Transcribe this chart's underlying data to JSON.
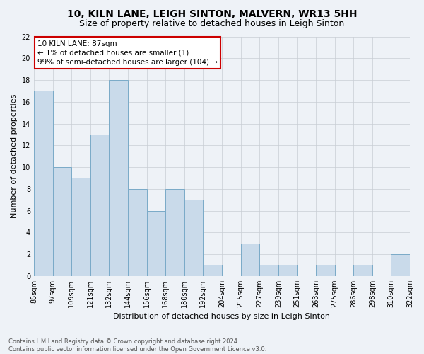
{
  "title": "10, KILN LANE, LEIGH SINTON, MALVERN, WR13 5HH",
  "subtitle": "Size of property relative to detached houses in Leigh Sinton",
  "xlabel": "Distribution of detached houses by size in Leigh Sinton",
  "ylabel": "Number of detached properties",
  "categories": [
    "85sqm",
    "97sqm",
    "109sqm",
    "121sqm",
    "132sqm",
    "144sqm",
    "156sqm",
    "168sqm",
    "180sqm",
    "192sqm",
    "204sqm",
    "215sqm",
    "227sqm",
    "239sqm",
    "251sqm",
    "263sqm",
    "275sqm",
    "286sqm",
    "298sqm",
    "310sqm",
    "322sqm"
  ],
  "values": [
    17,
    10,
    9,
    13,
    18,
    8,
    6,
    8,
    7,
    1,
    0,
    3,
    1,
    1,
    0,
    1,
    0,
    1,
    0,
    2
  ],
  "ylim": [
    0,
    22
  ],
  "yticks": [
    0,
    2,
    4,
    6,
    8,
    10,
    12,
    14,
    16,
    18,
    20,
    22
  ],
  "bar_color": "#c9daea",
  "bar_edge_color": "#7aaac8",
  "annotation_text": "10 KILN LANE: 87sqm\n← 1% of detached houses are smaller (1)\n99% of semi-detached houses are larger (104) →",
  "annotation_box_color": "#ffffff",
  "annotation_border_color": "#cc0000",
  "footer_line1": "Contains HM Land Registry data © Crown copyright and database right 2024.",
  "footer_line2": "Contains public sector information licensed under the Open Government Licence v3.0.",
  "bg_color": "#eef2f7",
  "plot_bg_color": "#eef2f7",
  "grid_color": "#c8cdd4",
  "title_fontsize": 10,
  "subtitle_fontsize": 9,
  "xlabel_fontsize": 8,
  "ylabel_fontsize": 8,
  "tick_fontsize": 7,
  "footer_fontsize": 6,
  "annotation_fontsize": 7.5
}
